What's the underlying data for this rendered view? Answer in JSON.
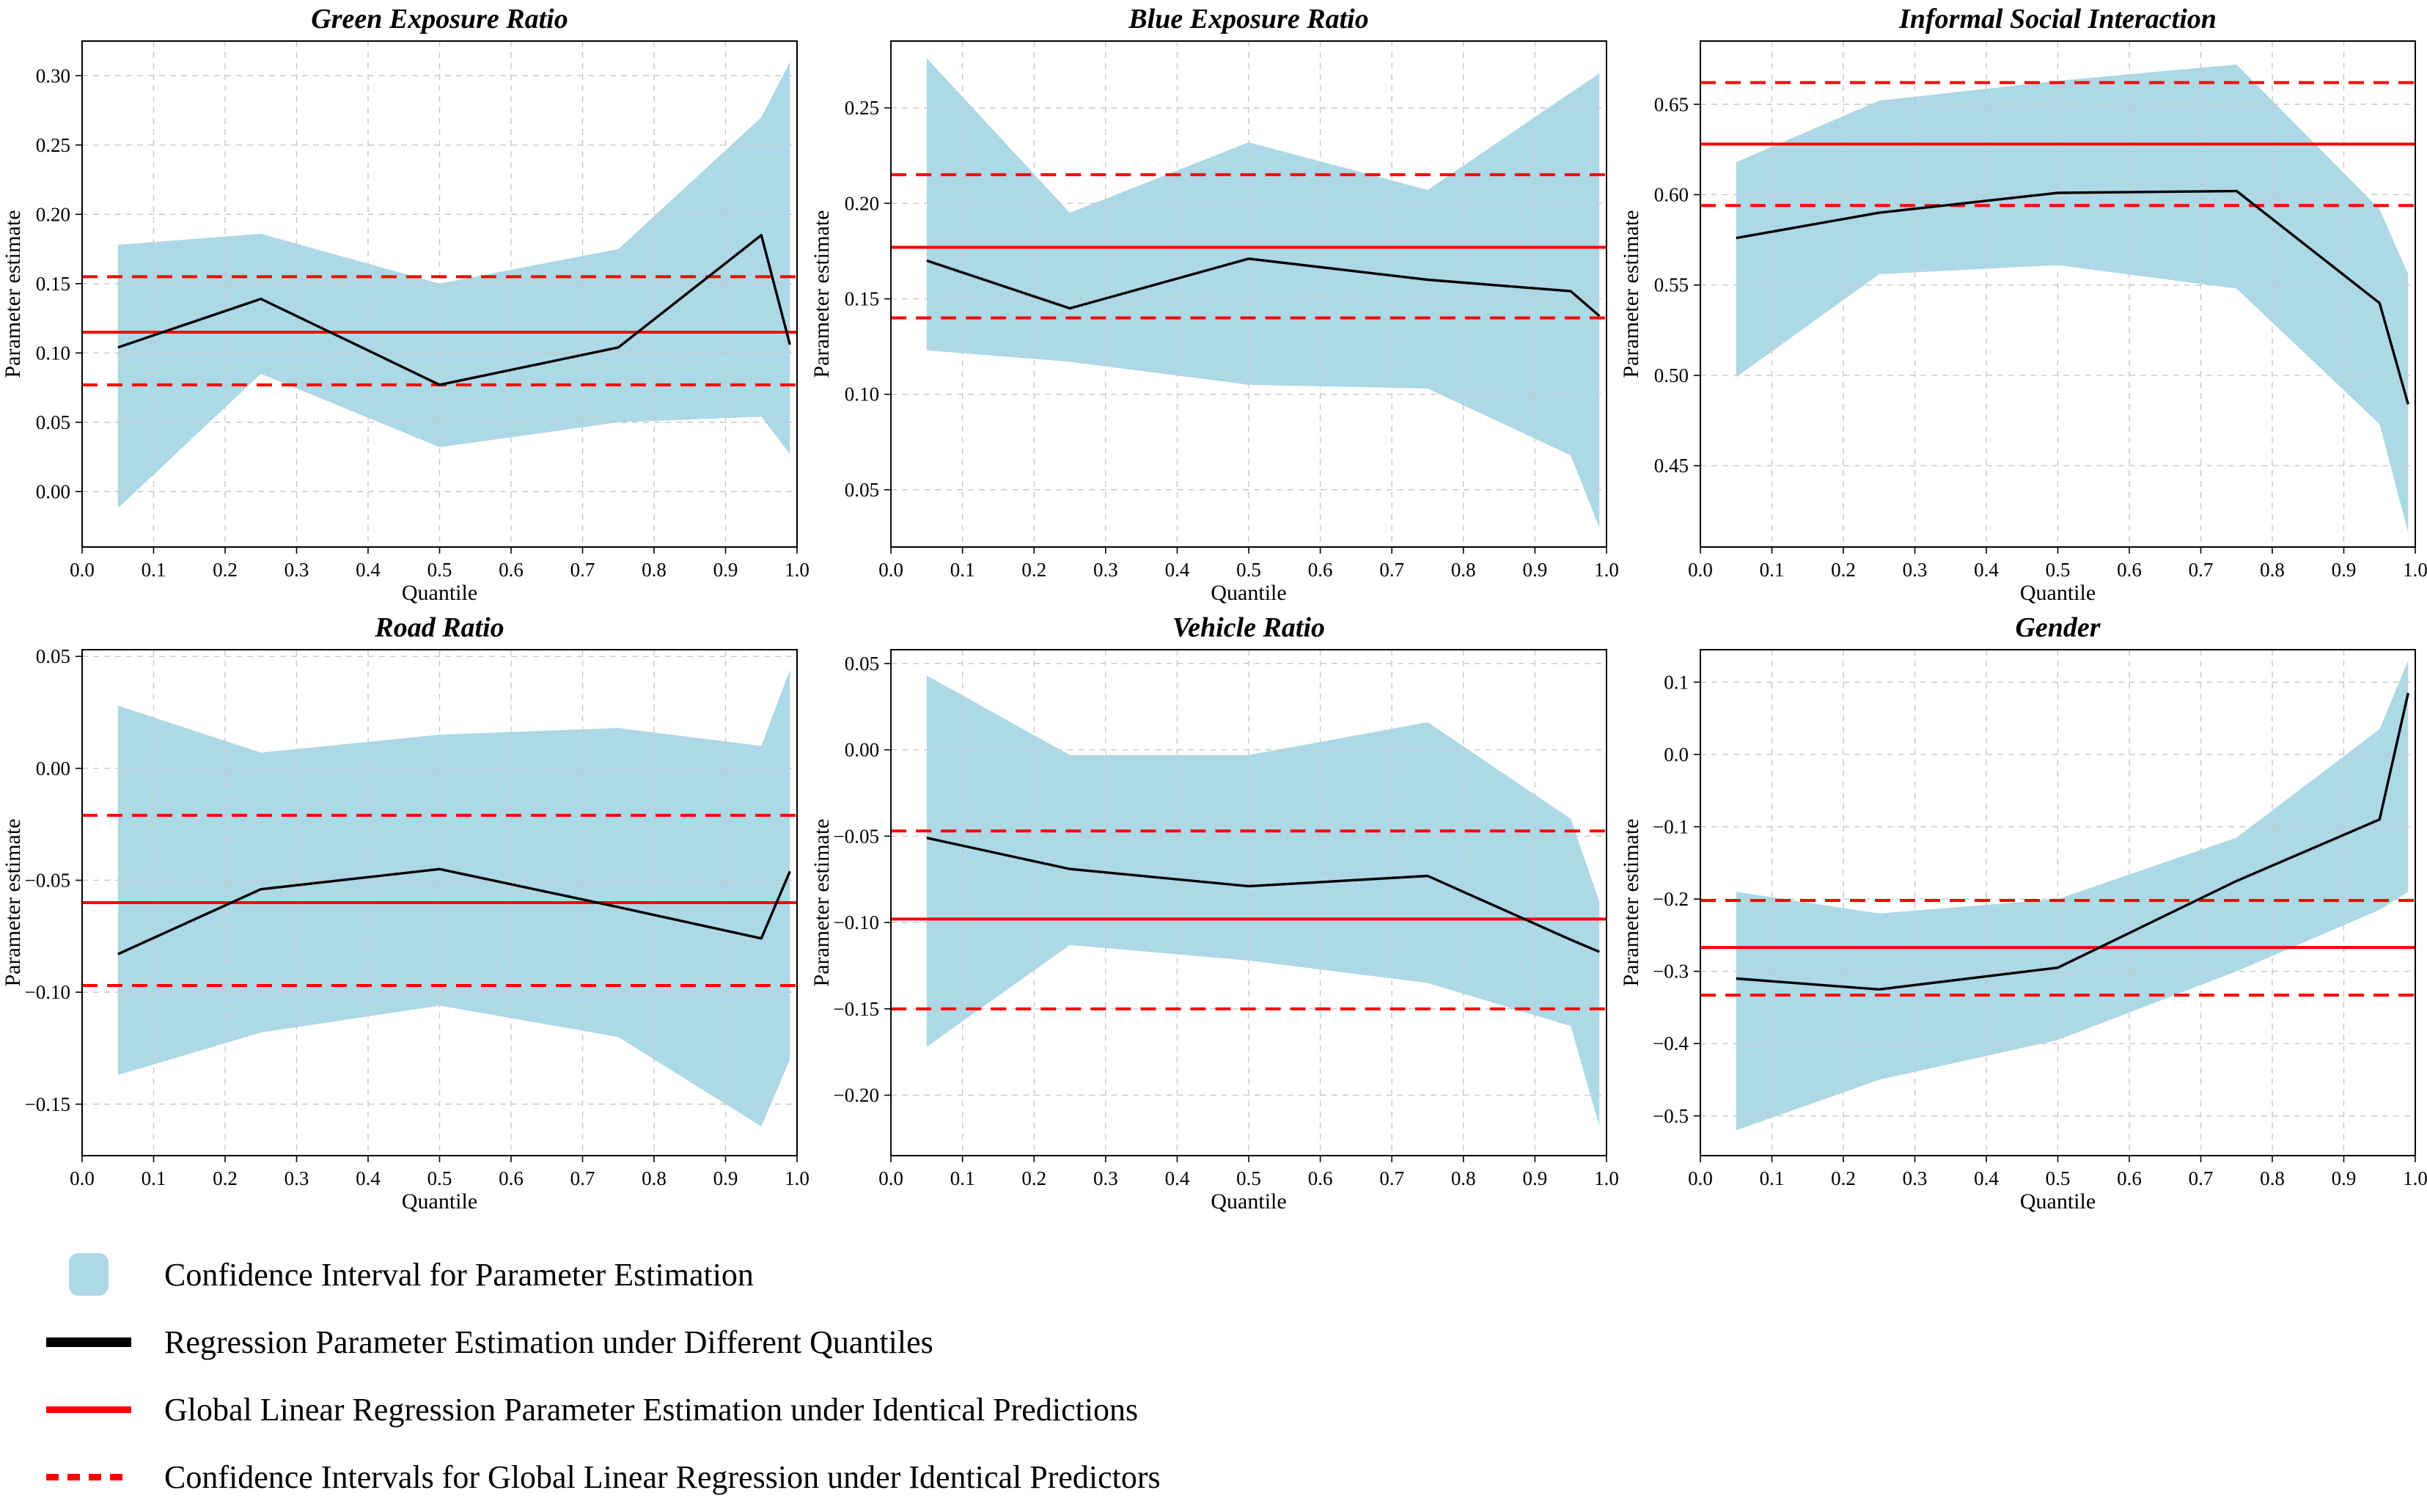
{
  "style": {
    "band_color": "#ADD8E6",
    "line_color": "#000000",
    "global_color": "#FF0000",
    "grid_color": "#C8C8C8",
    "axis_color": "#000000",
    "background": "#FFFFFF"
  },
  "axes_common": {
    "xlabel": "Quantile",
    "ylabel": "Parameter estimate",
    "xlim": [
      0.0,
      1.0
    ],
    "xticks": [
      0.0,
      0.1,
      0.2,
      0.3,
      0.4,
      0.5,
      0.6,
      0.7,
      0.8,
      0.9,
      1.0
    ],
    "xtick_labels": [
      "0.0",
      "0.1",
      "0.2",
      "0.3",
      "0.4",
      "0.5",
      "0.6",
      "0.7",
      "0.8",
      "0.9",
      "1.0"
    ],
    "quantiles": [
      0.05,
      0.25,
      0.5,
      0.75,
      0.95,
      0.99
    ],
    "grid": true,
    "legend_position": "bottom-left"
  },
  "chart_data": [
    {
      "type": "line",
      "title": "Green Exposure Ratio",
      "estimates": [
        0.104,
        0.139,
        0.077,
        0.104,
        0.185,
        0.106
      ],
      "ci_upper": [
        0.178,
        0.186,
        0.15,
        0.175,
        0.27,
        0.31
      ],
      "ci_lower": [
        -0.012,
        0.085,
        0.032,
        0.05,
        0.054,
        0.027
      ],
      "global_estimate": 0.115,
      "global_ci": [
        0.077,
        0.155
      ],
      "ylim": [
        -0.04,
        0.325
      ],
      "yticks": [
        0.0,
        0.05,
        0.1,
        0.15,
        0.2,
        0.25,
        0.3
      ],
      "ytick_labels": [
        "0.00",
        "0.05",
        "0.10",
        "0.15",
        "0.20",
        "0.25",
        "0.30"
      ]
    },
    {
      "type": "line",
      "title": "Blue Exposure Ratio",
      "estimates": [
        0.17,
        0.145,
        0.171,
        0.16,
        0.154,
        0.141
      ],
      "ci_upper": [
        0.276,
        0.195,
        0.232,
        0.207,
        0.258,
        0.268
      ],
      "ci_lower": [
        0.123,
        0.117,
        0.105,
        0.103,
        0.068,
        0.03
      ],
      "global_estimate": 0.177,
      "global_ci": [
        0.14,
        0.215
      ],
      "ylim": [
        0.02,
        0.285
      ],
      "yticks": [
        0.05,
        0.1,
        0.15,
        0.2,
        0.25
      ],
      "ytick_labels": [
        "0.05",
        "0.10",
        "0.15",
        "0.20",
        "0.25"
      ]
    },
    {
      "type": "line",
      "title": "Informal Social Interaction",
      "estimates": [
        0.576,
        0.59,
        0.601,
        0.602,
        0.54,
        0.484
      ],
      "ci_upper": [
        0.618,
        0.652,
        0.663,
        0.672,
        0.592,
        0.556
      ],
      "ci_lower": [
        0.499,
        0.556,
        0.561,
        0.548,
        0.473,
        0.413
      ],
      "global_estimate": 0.628,
      "global_ci": [
        0.594,
        0.662
      ],
      "ylim": [
        0.405,
        0.685
      ],
      "yticks": [
        0.45,
        0.5,
        0.55,
        0.6,
        0.65
      ],
      "ytick_labels": [
        "0.45",
        "0.50",
        "0.55",
        "0.60",
        "0.65"
      ]
    },
    {
      "type": "line",
      "title": "Road Ratio",
      "estimates": [
        -0.083,
        -0.054,
        -0.045,
        -0.062,
        -0.076,
        -0.046
      ],
      "ci_upper": [
        0.028,
        0.007,
        0.015,
        0.018,
        0.01,
        0.044
      ],
      "ci_lower": [
        -0.137,
        -0.118,
        -0.106,
        -0.12,
        -0.16,
        -0.13
      ],
      "global_estimate": -0.06,
      "global_ci": [
        -0.097,
        -0.021
      ],
      "ylim": [
        -0.173,
        0.053
      ],
      "yticks": [
        0.05,
        0.0,
        -0.05,
        -0.1,
        -0.15
      ],
      "ytick_labels": [
        "0.05",
        "0.00",
        "−0.05",
        "−0.10",
        "−0.15"
      ]
    },
    {
      "type": "line",
      "title": "Vehicle Ratio",
      "estimates": [
        -0.051,
        -0.069,
        -0.079,
        -0.073,
        -0.11,
        -0.117
      ],
      "ci_upper": [
        0.043,
        -0.003,
        -0.003,
        0.016,
        -0.04,
        -0.088
      ],
      "ci_lower": [
        -0.172,
        -0.113,
        -0.122,
        -0.135,
        -0.16,
        -0.218
      ],
      "global_estimate": -0.098,
      "global_ci": [
        -0.15,
        -0.047
      ],
      "ylim": [
        -0.235,
        0.058
      ],
      "yticks": [
        0.05,
        0.0,
        -0.05,
        -0.1,
        -0.15,
        -0.2
      ],
      "ytick_labels": [
        "0.05",
        "0.00",
        "−0.05",
        "−0.10",
        "−0.15",
        "−0.20"
      ]
    },
    {
      "type": "line",
      "title": "Gender",
      "estimates": [
        -0.31,
        -0.325,
        -0.295,
        -0.175,
        -0.09,
        0.085
      ],
      "ci_upper": [
        -0.19,
        -0.22,
        -0.2,
        -0.115,
        0.035,
        0.13
      ],
      "ci_lower": [
        -0.52,
        -0.45,
        -0.395,
        -0.3,
        -0.215,
        -0.19
      ],
      "global_estimate": -0.267,
      "global_ci": [
        -0.333,
        -0.202
      ],
      "ylim": [
        -0.555,
        0.145
      ],
      "yticks": [
        0.1,
        0.0,
        -0.1,
        -0.2,
        -0.3,
        -0.4,
        -0.5
      ],
      "ytick_labels": [
        "0.1",
        "0.0",
        "−0.1",
        "−0.2",
        "−0.3",
        "−0.4",
        "−0.5"
      ]
    }
  ],
  "legend": {
    "items": [
      {
        "swatch": "band",
        "label": "Confidence Interval for Parameter Estimation"
      },
      {
        "swatch": "black-line",
        "label": "Regression Parameter Estimation under Different Quantiles"
      },
      {
        "swatch": "red-line",
        "label": "Global Linear Regression Parameter Estimation under Identical Predictions"
      },
      {
        "swatch": "red-dashed",
        "label": "Confidence Intervals for Global Linear Regression under Identical Predictors"
      }
    ]
  }
}
